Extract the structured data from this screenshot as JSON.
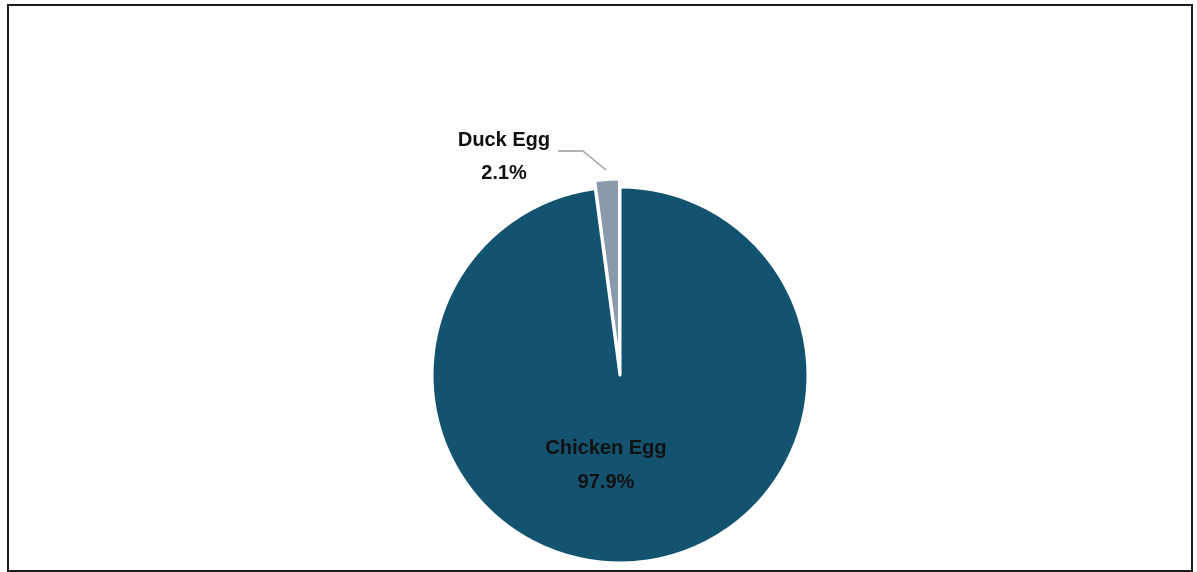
{
  "chart_data": {
    "type": "pie",
    "slices": [
      {
        "label": "Duck Egg",
        "value": 2.1,
        "value_label": "2.1%",
        "color": "#8a9aab"
      },
      {
        "label": "Chicken Egg",
        "value": 97.9,
        "value_label": "97.9%",
        "color": "#14536f"
      }
    ],
    "label_color": "#111111",
    "leader_line_color": "#a6a6a6",
    "exploded_slice": "Duck Egg"
  }
}
